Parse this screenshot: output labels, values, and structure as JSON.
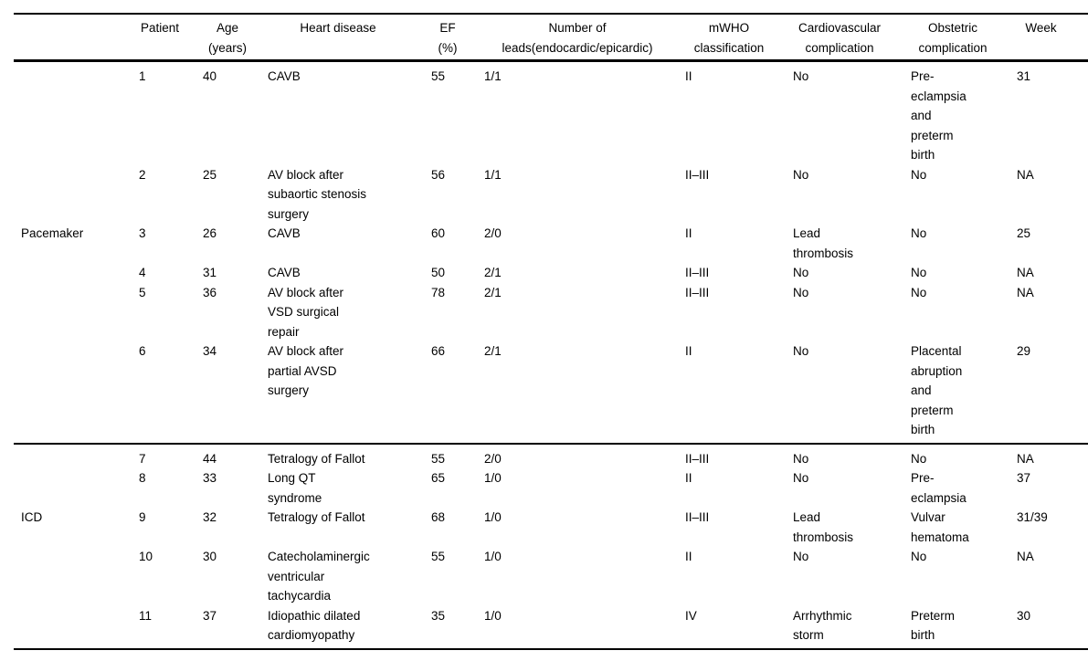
{
  "table": {
    "columns": [
      {
        "key": "group",
        "label": ""
      },
      {
        "key": "patient",
        "label": "Patient"
      },
      {
        "key": "age",
        "label": "Age\n(years)"
      },
      {
        "key": "heart",
        "label": "Heart disease"
      },
      {
        "key": "ef",
        "label": "EF\n(%)"
      },
      {
        "key": "leads",
        "label": "Number of\nleads(endocardic/epicardic)"
      },
      {
        "key": "mwho",
        "label": "mWHO\nclassification"
      },
      {
        "key": "cardio",
        "label": "Cardiovascular\ncomplication"
      },
      {
        "key": "obstetric",
        "label": "Obstetric\ncomplication"
      },
      {
        "key": "week",
        "label": "Week"
      }
    ],
    "groups": [
      {
        "device": "Pacemaker",
        "label_row_index": 2,
        "rows": [
          {
            "patient": "1",
            "age": "40",
            "heart": "CAVB",
            "ef": "55",
            "leads": "1/1",
            "mwho": "II",
            "cardio": "No",
            "obstetric": "Pre-\neclampsia\nand\npreterm\nbirth",
            "week": "31"
          },
          {
            "patient": "2",
            "age": "25",
            "heart": "AV block after\nsubaortic stenosis\nsurgery",
            "ef": "56",
            "leads": "1/1",
            "mwho": "II–III",
            "cardio": "No",
            "obstetric": "No",
            "week": "NA"
          },
          {
            "patient": "3",
            "age": "26",
            "heart": "CAVB",
            "ef": "60",
            "leads": "2/0",
            "mwho": "II",
            "cardio": "Lead\nthrombosis",
            "obstetric": "No",
            "week": "25"
          },
          {
            "patient": "4",
            "age": "31",
            "heart": "CAVB",
            "ef": "50",
            "leads": "2/1",
            "mwho": "II–III",
            "cardio": "No",
            "obstetric": "No",
            "week": "NA"
          },
          {
            "patient": "5",
            "age": "36",
            "heart": "AV block after\nVSD surgical\nrepair",
            "ef": "78",
            "leads": "2/1",
            "mwho": "II–III",
            "cardio": "No",
            "obstetric": "No",
            "week": "NA"
          },
          {
            "patient": "6",
            "age": "34",
            "heart": "AV block after\npartial AVSD\nsurgery",
            "ef": "66",
            "leads": "2/1",
            "mwho": "II",
            "cardio": "No",
            "obstetric": "Placental\nabruption\nand\npreterm\nbirth",
            "week": "29"
          }
        ]
      },
      {
        "device": "ICD",
        "label_row_index": 2,
        "rows": [
          {
            "patient": "7",
            "age": "44",
            "heart": "Tetralogy of Fallot",
            "ef": "55",
            "leads": "2/0",
            "mwho": "II–III",
            "cardio": "No",
            "obstetric": "No",
            "week": "NA"
          },
          {
            "patient": "8",
            "age": "33",
            "heart": "Long QT\nsyndrome",
            "ef": "65",
            "leads": "1/0",
            "mwho": "II",
            "cardio": "No",
            "obstetric": "Pre-\neclampsia",
            "week": "37"
          },
          {
            "patient": "9",
            "age": "32",
            "heart": "Tetralogy of Fallot",
            "ef": "68",
            "leads": "1/0",
            "mwho": "II–III",
            "cardio": "Lead\nthrombosis",
            "obstetric": "Vulvar\nhematoma",
            "week": "31/39"
          },
          {
            "patient": "10",
            "age": "30",
            "heart": "Catecholaminergic\nventricular\ntachycardia",
            "ef": "55",
            "leads": "1/0",
            "mwho": "II",
            "cardio": "No",
            "obstetric": "No",
            "week": "NA"
          },
          {
            "patient": "11",
            "age": "37",
            "heart": "Idiopathic dilated\ncardiomyopathy",
            "ef": "35",
            "leads": "1/0",
            "mwho": "IV",
            "cardio": "Arrhythmic\nstorm",
            "obstetric": "Preterm\nbirth",
            "week": "30"
          }
        ]
      }
    ]
  }
}
